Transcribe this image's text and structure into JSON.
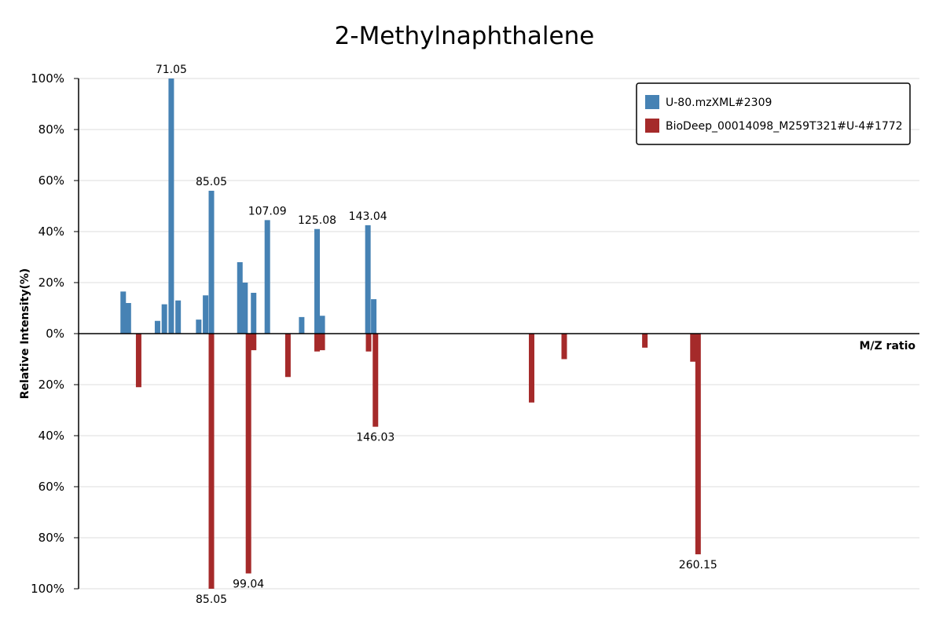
{
  "chart_data": {
    "type": "bar",
    "title": "2-Methylnaphthalene",
    "xlabel": "M/Z ratio",
    "ylabel": "Relative Intensity(%)",
    "ylim": [
      -100,
      100
    ],
    "y_ticks": [
      100,
      80,
      60,
      40,
      20,
      0,
      20,
      40,
      60,
      80,
      100
    ],
    "y_tick_suffix": "%",
    "xlim": [
      50,
      295
    ],
    "grid": true,
    "legend_position": "top-right",
    "series": [
      {
        "name": "U-80.mzXML#2309",
        "color": "#4682b4",
        "direction": "up",
        "points": [
          {
            "x": 63.0,
            "y": 16.5
          },
          {
            "x": 64.5,
            "y": 12.0
          },
          {
            "x": 73.0,
            "y": 5.0
          },
          {
            "x": 75.0,
            "y": 11.5
          },
          {
            "x": 77.0,
            "y": 100.0,
            "label": "71.05"
          },
          {
            "x": 79.0,
            "y": 13.0
          },
          {
            "x": 85.0,
            "y": 5.5
          },
          {
            "x": 87.0,
            "y": 15.0
          },
          {
            "x": 88.7,
            "y": 56.0,
            "label": "85.05"
          },
          {
            "x": 97.0,
            "y": 28.0
          },
          {
            "x": 98.5,
            "y": 20.0
          },
          {
            "x": 101.0,
            "y": 16.0
          },
          {
            "x": 105.0,
            "y": 44.5,
            "label": "107.09"
          },
          {
            "x": 115.0,
            "y": 6.5
          },
          {
            "x": 119.5,
            "y": 41.0,
            "label": "125.08"
          },
          {
            "x": 121.0,
            "y": 7.0
          },
          {
            "x": 134.3,
            "y": 42.5,
            "label": "143.04"
          },
          {
            "x": 136.0,
            "y": 13.5
          }
        ]
      },
      {
        "name": "BioDeep_00014098_M259T321#U-4#1772",
        "color": "#a52a2a",
        "direction": "down",
        "points": [
          {
            "x": 67.5,
            "y": 21.0
          },
          {
            "x": 88.7,
            "y": 100.0,
            "label": "85.05"
          },
          {
            "x": 99.5,
            "y": 94.0,
            "label": "99.04"
          },
          {
            "x": 101.0,
            "y": 6.5
          },
          {
            "x": 111.0,
            "y": 17.0
          },
          {
            "x": 119.5,
            "y": 7.0
          },
          {
            "x": 121.0,
            "y": 6.5
          },
          {
            "x": 134.5,
            "y": 7.0
          },
          {
            "x": 136.5,
            "y": 36.5,
            "label": "146.03"
          },
          {
            "x": 182.0,
            "y": 27.0
          },
          {
            "x": 191.5,
            "y": 10.0
          },
          {
            "x": 215.0,
            "y": 5.5
          },
          {
            "x": 229.0,
            "y": 11.0
          },
          {
            "x": 230.5,
            "y": 86.5,
            "label": "260.15"
          }
        ]
      }
    ]
  }
}
